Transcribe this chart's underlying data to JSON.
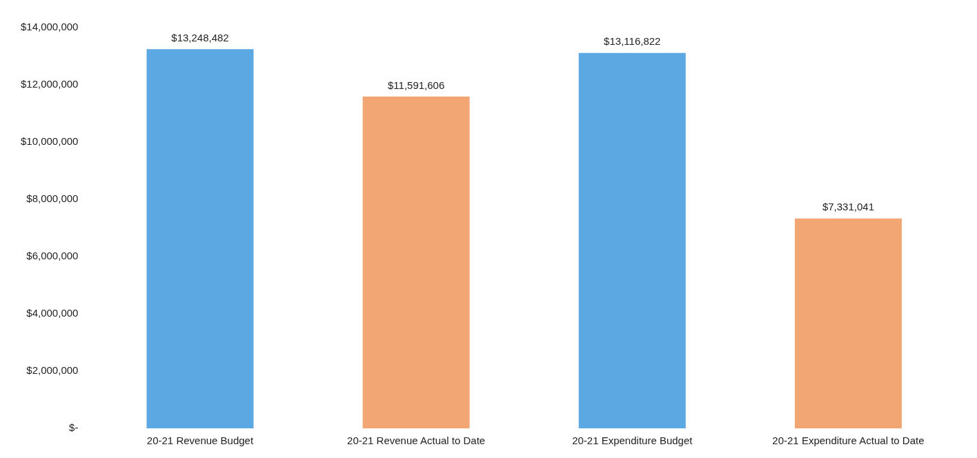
{
  "chart_data": {
    "type": "bar",
    "categories": [
      "20-21 Revenue Budget",
      "20-21 Revenue Actual to Date",
      "20-21 Expenditure Budget",
      "20-21 Expenditure Actual to Date"
    ],
    "values": [
      13248482,
      11591606,
      13116822,
      7331041
    ],
    "colors": [
      "#5ba8e2",
      "#f2a673",
      "#5ba8e2",
      "#f2a673"
    ],
    "value_labels": [
      "$13,248,482",
      "$11,591,606",
      "$13,116,822",
      "$7,331,041"
    ],
    "ylim": [
      0,
      14000000
    ],
    "yticks": [
      {
        "value": 0,
        "label": "$-"
      },
      {
        "value": 2000000,
        "label": "$2,000,000"
      },
      {
        "value": 4000000,
        "label": "$4,000,000"
      },
      {
        "value": 6000000,
        "label": "$6,000,000"
      },
      {
        "value": 8000000,
        "label": "$8,000,000"
      },
      {
        "value": 10000000,
        "label": "$10,000,000"
      },
      {
        "value": 12000000,
        "label": "$12,000,000"
      },
      {
        "value": 14000000,
        "label": "$14,000,000"
      }
    ],
    "grid": false,
    "legend": false
  }
}
